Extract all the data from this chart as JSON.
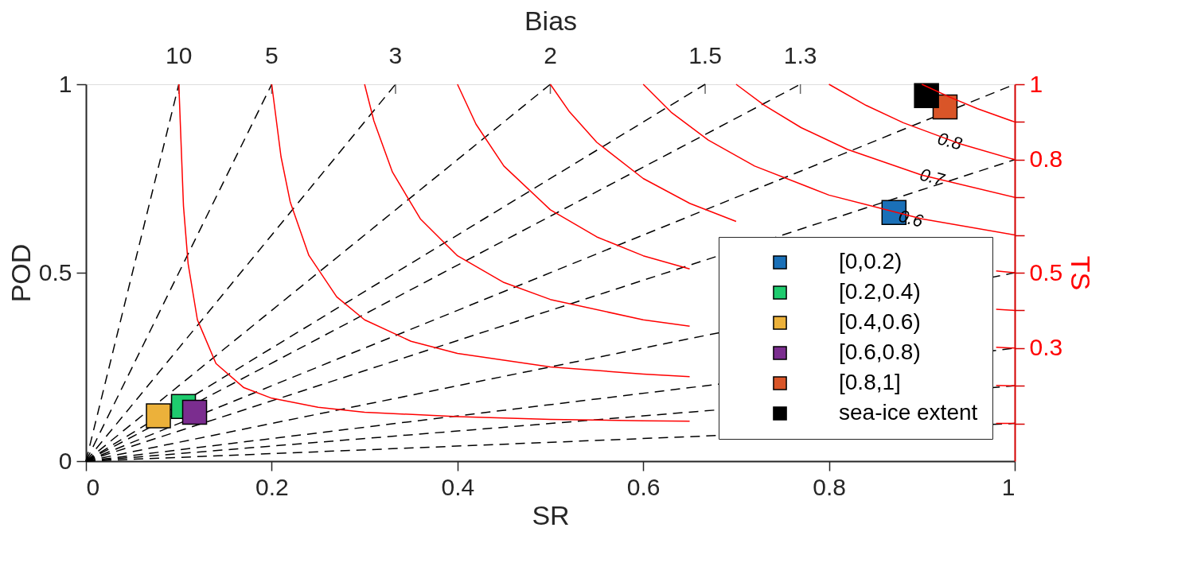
{
  "chart_data": {
    "type": "scatter",
    "xlabel": "SR",
    "ylabel": "POD",
    "x2label": "Bias",
    "y2label": "TS",
    "xlim": [
      0,
      1
    ],
    "xticks": [
      0,
      0.2,
      0.4,
      0.6,
      0.8,
      1
    ],
    "ylim": [
      0,
      1
    ],
    "yticks": [
      0,
      0.5,
      1
    ],
    "y2lim": [
      0,
      1
    ],
    "y2ticks": [
      {
        "value": 0.1,
        "label": null
      },
      {
        "value": 0.2,
        "label": null
      },
      0.3,
      {
        "value": 0.4,
        "label": null
      },
      0.5,
      {
        "value": 0.6,
        "label": null
      },
      {
        "value": 0.7,
        "label": null
      },
      0.8,
      {
        "value": 0.9,
        "label": null
      },
      1
    ],
    "grid": false,
    "legend": "bottom right",
    "marker": "none",
    "series": [
      {
        "name": "[0,0.2)",
        "marker": "square",
        "color": "#1a70b8",
        "x": [
          0.87
        ],
        "values": [
          0.66
        ]
      },
      {
        "name": "[0.2,0.4)",
        "marker": "square",
        "color": "#1ecb6e",
        "x": [
          0.105
        ],
        "values": [
          0.145
        ]
      },
      {
        "name": "[0.4,0.6)",
        "marker": "square",
        "color": "#ecb13a",
        "x": [
          0.078
        ],
        "values": [
          0.12
        ]
      },
      {
        "name": "[0.6,0.8)",
        "marker": "square",
        "color": "#7b2d8f",
        "x": [
          0.117
        ],
        "values": [
          0.13
        ]
      },
      {
        "name": "[0.8,1]",
        "marker": "square",
        "color": "#d95528",
        "x": [
          0.925
        ],
        "values": [
          0.94
        ]
      },
      {
        "name": "sea-ice extent",
        "marker": "square",
        "color": "#000000",
        "x": [
          0.905
        ],
        "values": [
          0.97
        ]
      },
      {
        "type": "line",
        "line_style": "dashed",
        "color": "#000000",
        "x": [
          0,
          0.1
        ],
        "values": [
          0,
          1
        ]
      },
      {
        "type": "line",
        "line_style": "dashed",
        "color": "#000000",
        "x": [
          0,
          0.2
        ],
        "values": [
          0,
          1
        ]
      },
      {
        "type": "line",
        "line_style": "dashed",
        "color": "#000000",
        "x": [
          0,
          0.3333
        ],
        "values": [
          0,
          1
        ]
      },
      {
        "type": "line",
        "line_style": "dashed",
        "color": "#000000",
        "x": [
          0,
          0.5
        ],
        "values": [
          0,
          1
        ]
      },
      {
        "type": "line",
        "line_style": "dashed",
        "color": "#000000",
        "x": [
          0,
          0.6667
        ],
        "values": [
          0,
          1
        ]
      },
      {
        "type": "line",
        "line_style": "dashed",
        "color": "#000000",
        "x": [
          0,
          0.7692
        ],
        "values": [
          0,
          1
        ]
      },
      {
        "type": "line",
        "line_style": "dashed",
        "color": "#000000",
        "x": [
          0,
          1
        ],
        "values": [
          0,
          1
        ]
      },
      {
        "type": "line",
        "line_style": "dashed",
        "color": "#000000",
        "x": [
          0,
          1
        ],
        "values": [
          0,
          0.8
        ]
      },
      {
        "type": "line",
        "line_style": "dashed",
        "color": "#000000",
        "x": [
          0,
          1
        ],
        "values": [
          0,
          0.5
        ]
      },
      {
        "type": "line",
        "line_style": "dashed",
        "color": "#000000",
        "x": [
          0,
          1
        ],
        "values": [
          0,
          0.3
        ]
      },
      {
        "type": "line",
        "line_style": "dashed",
        "color": "#000000",
        "x": [
          0,
          1
        ],
        "values": [
          0,
          0.2
        ]
      },
      {
        "type": "line",
        "line_style": "dashed",
        "color": "#000000",
        "x": [
          0,
          1
        ],
        "values": [
          0,
          0.1
        ]
      },
      {
        "type": "line",
        "axis": "y2",
        "line_style": "solid",
        "color": "#ff0000",
        "x": [
          0.1,
          0.105,
          0.11,
          0.12,
          0.14,
          0.17,
          0.2,
          0.25,
          0.3,
          0.4,
          0.5,
          0.6,
          0.65,
          0.7,
          0.8,
          0.9,
          0.98,
          1
        ],
        "values": [
          1,
          0.677,
          0.524,
          0.375,
          0.259,
          0.195,
          0.167,
          0.143,
          0.13,
          0.118,
          0.111,
          0.107,
          0.106,
          null,
          null,
          null,
          0.1,
          0.1
        ]
      },
      {
        "type": "line",
        "axis": "y2",
        "line_style": "solid",
        "color": "#ff0000",
        "x": [
          0.2,
          0.21,
          0.22,
          0.24,
          0.27,
          0.3,
          0.35,
          0.4,
          0.5,
          0.6,
          0.65,
          0.7,
          0.8,
          0.9,
          0.98,
          1
        ],
        "values": [
          1,
          0.808,
          0.687,
          0.546,
          0.436,
          0.375,
          0.318,
          0.286,
          0.25,
          0.231,
          0.224,
          null,
          null,
          null,
          0.201,
          0.2
        ]
      },
      {
        "type": "line",
        "axis": "y2",
        "line_style": "solid",
        "color": "#ff0000",
        "x": [
          0.3,
          0.31,
          0.33,
          0.36,
          0.4,
          0.45,
          0.5,
          0.6,
          0.65,
          0.7,
          0.8,
          0.9,
          0.98,
          1
        ],
        "values": [
          1,
          0.903,
          0.767,
          0.643,
          0.545,
          0.474,
          0.429,
          0.375,
          0.358,
          null,
          null,
          null,
          0.302,
          0.3
        ]
      },
      {
        "type": "line",
        "axis": "y2",
        "line_style": "solid",
        "color": "#ff0000",
        "x": [
          0.4,
          0.42,
          0.45,
          0.5,
          0.55,
          0.6,
          0.65,
          0.7,
          0.8,
          0.9,
          0.98,
          1
        ],
        "values": [
          1,
          0.894,
          0.783,
          0.667,
          0.595,
          0.545,
          0.51,
          null,
          null,
          null,
          0.403,
          0.4
        ]
      },
      {
        "type": "line",
        "axis": "y2",
        "line_style": "solid",
        "color": "#ff0000",
        "x": [
          0.5,
          0.52,
          0.55,
          0.6,
          0.65,
          0.7,
          0.8,
          0.9,
          0.98,
          1
        ],
        "values": [
          1,
          0.929,
          0.846,
          0.75,
          0.684,
          0.636,
          null,
          null,
          0.505,
          0.5
        ]
      },
      {
        "type": "line",
        "axis": "y2",
        "line_style": "solid",
        "color": "#ff0000",
        "x": [
          0.6,
          0.63,
          0.67,
          0.72,
          0.8,
          0.9,
          1
        ],
        "values": [
          1,
          0.926,
          0.852,
          0.783,
          0.706,
          0.643,
          0.6
        ]
      },
      {
        "type": "line",
        "axis": "y2",
        "line_style": "solid",
        "color": "#ff0000",
        "x": [
          0.7,
          0.73,
          0.77,
          0.82,
          0.9,
          1
        ],
        "values": [
          1,
          0.945,
          0.885,
          0.827,
          0.759,
          0.7
        ]
      },
      {
        "type": "line",
        "axis": "y2",
        "line_style": "solid",
        "color": "#ff0000",
        "x": [
          0.8,
          0.84,
          0.88,
          0.94,
          1
        ],
        "values": [
          1,
          0.944,
          0.898,
          0.843,
          0.8
        ]
      },
      {
        "type": "line",
        "axis": "y2",
        "line_style": "solid",
        "color": "#ff0000",
        "x": [
          0.9,
          0.93,
          0.96,
          1
        ],
        "values": [
          1,
          0.966,
          0.935,
          0.9
        ]
      }
    ],
    "annotations": [
      {
        "text": "10",
        "x": 0.1,
        "y": 1
      },
      {
        "text": "5",
        "x": 0.2,
        "y": 1
      },
      {
        "text": "3",
        "x": 0.3333,
        "y": 1
      },
      {
        "text": "2",
        "x": 0.5,
        "y": 1
      },
      {
        "text": "1.5",
        "x": 0.6667,
        "y": 1
      },
      {
        "text": "1.3",
        "x": 0.7692,
        "y": 1
      },
      {
        "text": "0.8",
        "x": 0.93,
        "y": 0.848
      },
      {
        "text": "0.7",
        "x": 0.911,
        "y": 0.753
      },
      {
        "text": "0.6",
        "x": 0.888,
        "y": 0.643
      }
    ]
  }
}
